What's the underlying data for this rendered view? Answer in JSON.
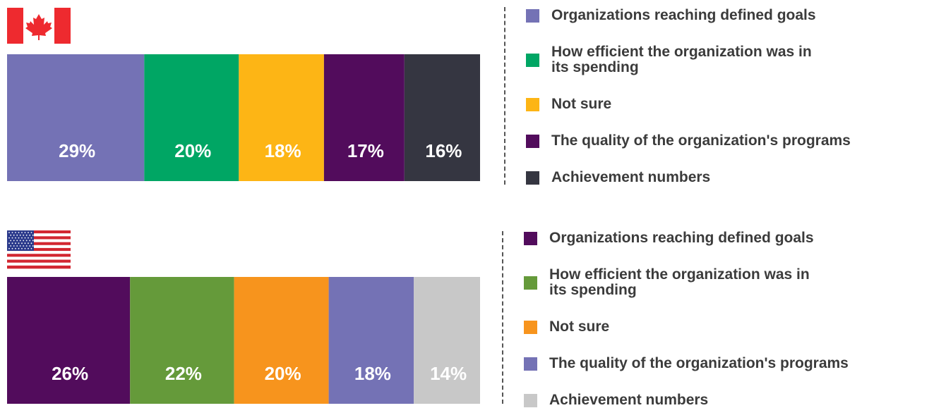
{
  "chart_data": [
    {
      "type": "bar",
      "stacked": true,
      "orientation": "horizontal",
      "xlim": [
        0,
        100
      ],
      "series": [
        {
          "name": "Organizations reaching defined goals",
          "color": "#7472b5",
          "values": [
            29
          ],
          "value_labels": [
            "29%"
          ]
        },
        {
          "name": "How efficient the organization was in\nits spending",
          "color": "#00a664",
          "values": [
            20
          ],
          "value_labels": [
            "20%"
          ]
        },
        {
          "name": "Not sure",
          "color": "#fdb515",
          "values": [
            18
          ],
          "value_labels": [
            "18%"
          ]
        },
        {
          "name": "The quality of the organization's programs",
          "color": "#520c5c",
          "values": [
            17
          ],
          "value_labels": [
            "17%"
          ]
        },
        {
          "name": "Achievement numbers",
          "color": "#353641",
          "values": [
            16
          ],
          "value_labels": [
            "16%"
          ]
        }
      ]
    },
    {
      "type": "bar",
      "stacked": true,
      "orientation": "horizontal",
      "xlim": [
        0,
        100
      ],
      "series": [
        {
          "name": "Organizations reaching defined goals",
          "color": "#520c5c",
          "values": [
            26
          ],
          "value_labels": [
            "26%"
          ]
        },
        {
          "name": "How efficient the organization was in\nits spending",
          "color": "#659a3a",
          "values": [
            22
          ],
          "value_labels": [
            "22%"
          ]
        },
        {
          "name": "Not sure",
          "color": "#f7941d",
          "values": [
            20
          ],
          "value_labels": [
            "20%"
          ]
        },
        {
          "name": "The quality of the organization's programs",
          "color": "#7472b5",
          "values": [
            18
          ],
          "value_labels": [
            "18%"
          ]
        },
        {
          "name": "Achievement numbers",
          "color": "#c8c8c8",
          "values": [
            14
          ],
          "value_labels": [
            "14%"
          ]
        }
      ]
    }
  ]
}
